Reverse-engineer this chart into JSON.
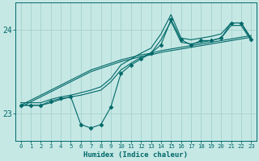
{
  "xlabel": "Humidex (Indice chaleur)",
  "background_color": "#c5e8e5",
  "grid_color": "#aad4d0",
  "line_color": "#006868",
  "xlim": [
    -0.5,
    23.5
  ],
  "ylim": [
    22.68,
    24.32
  ],
  "yticks": [
    23,
    24
  ],
  "xticks": [
    0,
    1,
    2,
    3,
    4,
    5,
    6,
    7,
    8,
    9,
    10,
    11,
    12,
    13,
    14,
    15,
    16,
    17,
    18,
    19,
    20,
    21,
    22,
    23
  ],
  "series": {
    "jagged": [
      23.1,
      23.1,
      23.1,
      23.15,
      23.18,
      23.2,
      22.87,
      22.83,
      22.87,
      23.08,
      23.48,
      23.58,
      23.65,
      23.72,
      23.82,
      24.12,
      23.88,
      23.82,
      23.87,
      23.87,
      23.9,
      24.08,
      24.08,
      23.88
    ],
    "upper_env": [
      23.13,
      23.13,
      23.13,
      23.17,
      23.2,
      23.22,
      23.25,
      23.28,
      23.32,
      23.42,
      23.58,
      23.65,
      23.72,
      23.78,
      23.95,
      24.18,
      23.9,
      23.88,
      23.9,
      23.92,
      23.95,
      24.08,
      24.08,
      23.9
    ],
    "lower_env": [
      23.1,
      23.1,
      23.1,
      23.13,
      23.17,
      23.2,
      23.22,
      23.25,
      23.28,
      23.38,
      23.52,
      23.6,
      23.67,
      23.72,
      23.88,
      24.1,
      23.85,
      23.83,
      23.85,
      23.87,
      23.9,
      24.05,
      24.05,
      23.87
    ],
    "trend1": [
      23.08,
      23.14,
      23.2,
      23.26,
      23.32,
      23.38,
      23.44,
      23.5,
      23.54,
      23.58,
      23.62,
      23.65,
      23.68,
      23.7,
      23.73,
      23.75,
      23.77,
      23.79,
      23.81,
      23.83,
      23.85,
      23.87,
      23.89,
      23.91
    ],
    "trend2": [
      23.1,
      23.16,
      23.22,
      23.28,
      23.34,
      23.4,
      23.46,
      23.52,
      23.56,
      23.6,
      23.64,
      23.67,
      23.7,
      23.72,
      23.75,
      23.77,
      23.79,
      23.81,
      23.83,
      23.85,
      23.87,
      23.89,
      23.91,
      23.93
    ]
  }
}
